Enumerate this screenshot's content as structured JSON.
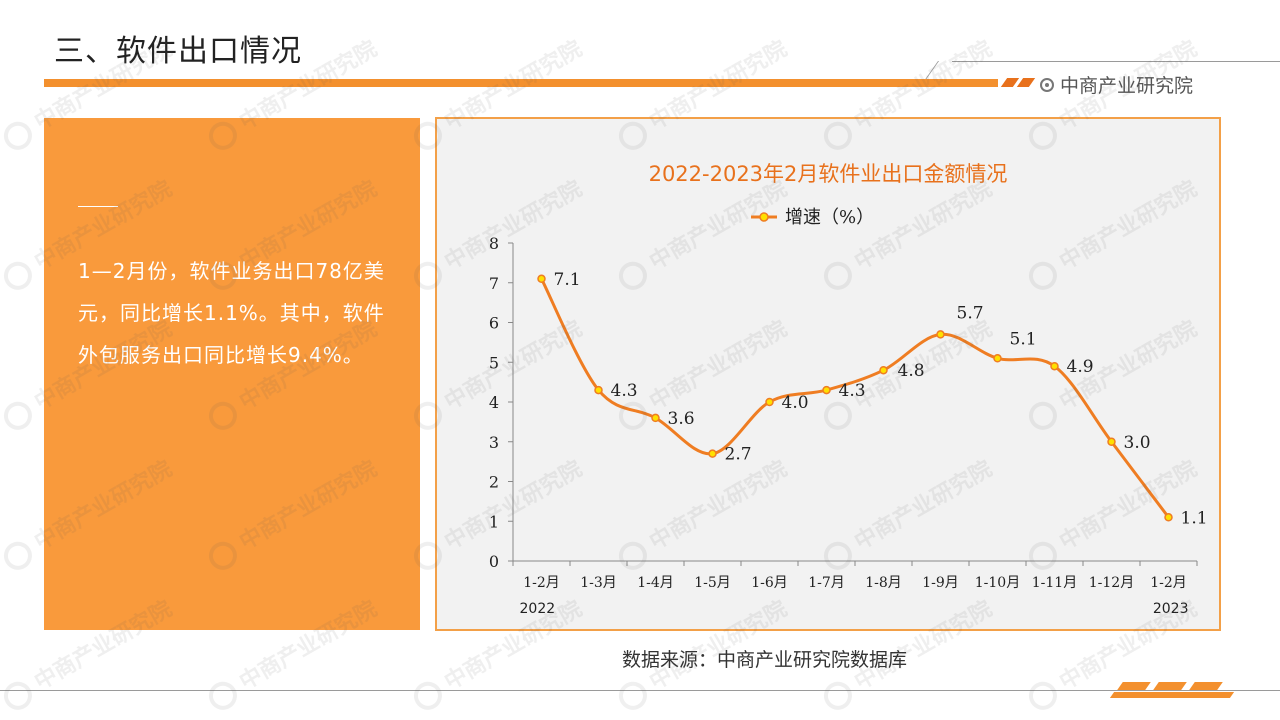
{
  "slide": {
    "title": "三、软件出口情况",
    "brand": "中商产业研究院",
    "brand_icon": "target-icon",
    "accent_color": "#f3902e",
    "watermark_text": "中商产业研究院"
  },
  "summary": {
    "text": "1—2月份，软件业务出口78亿美元，同比增长1.1%。其中，软件外包服务出口同比增长9.4%。"
  },
  "source": "数据来源：中商产业研究院数据库",
  "chart_data": {
    "type": "line",
    "title": "2022-2023年2月软件业出口金额情况",
    "categories": [
      "1-2月",
      "1-3月",
      "1-4月",
      "1-5月",
      "1-6月",
      "1-7月",
      "1-8月",
      "1-9月",
      "1-10月",
      "1-11月",
      "1-12月",
      "1-2月"
    ],
    "series": [
      {
        "name": "增速（%）",
        "values": [
          7.1,
          4.3,
          3.6,
          2.7,
          4.0,
          4.3,
          4.8,
          5.7,
          5.1,
          4.9,
          3.0,
          1.1
        ],
        "labels": [
          "7.1",
          "4.3",
          "3.6",
          "2.7",
          "4.0",
          "4.3",
          "4.8",
          "5.7",
          "5.1",
          "4.9",
          "3.0",
          "1.1"
        ],
        "color": "#ef7d22",
        "marker_color": "#ffe000"
      }
    ],
    "year_labels": [
      "2022",
      "2023"
    ],
    "ylim": [
      0,
      8
    ],
    "yticks": [
      "0",
      "1",
      "2",
      "3",
      "4",
      "5",
      "6",
      "7",
      "8"
    ],
    "legend_position": "top-center",
    "grid": false,
    "title_color": "#e8711c"
  }
}
